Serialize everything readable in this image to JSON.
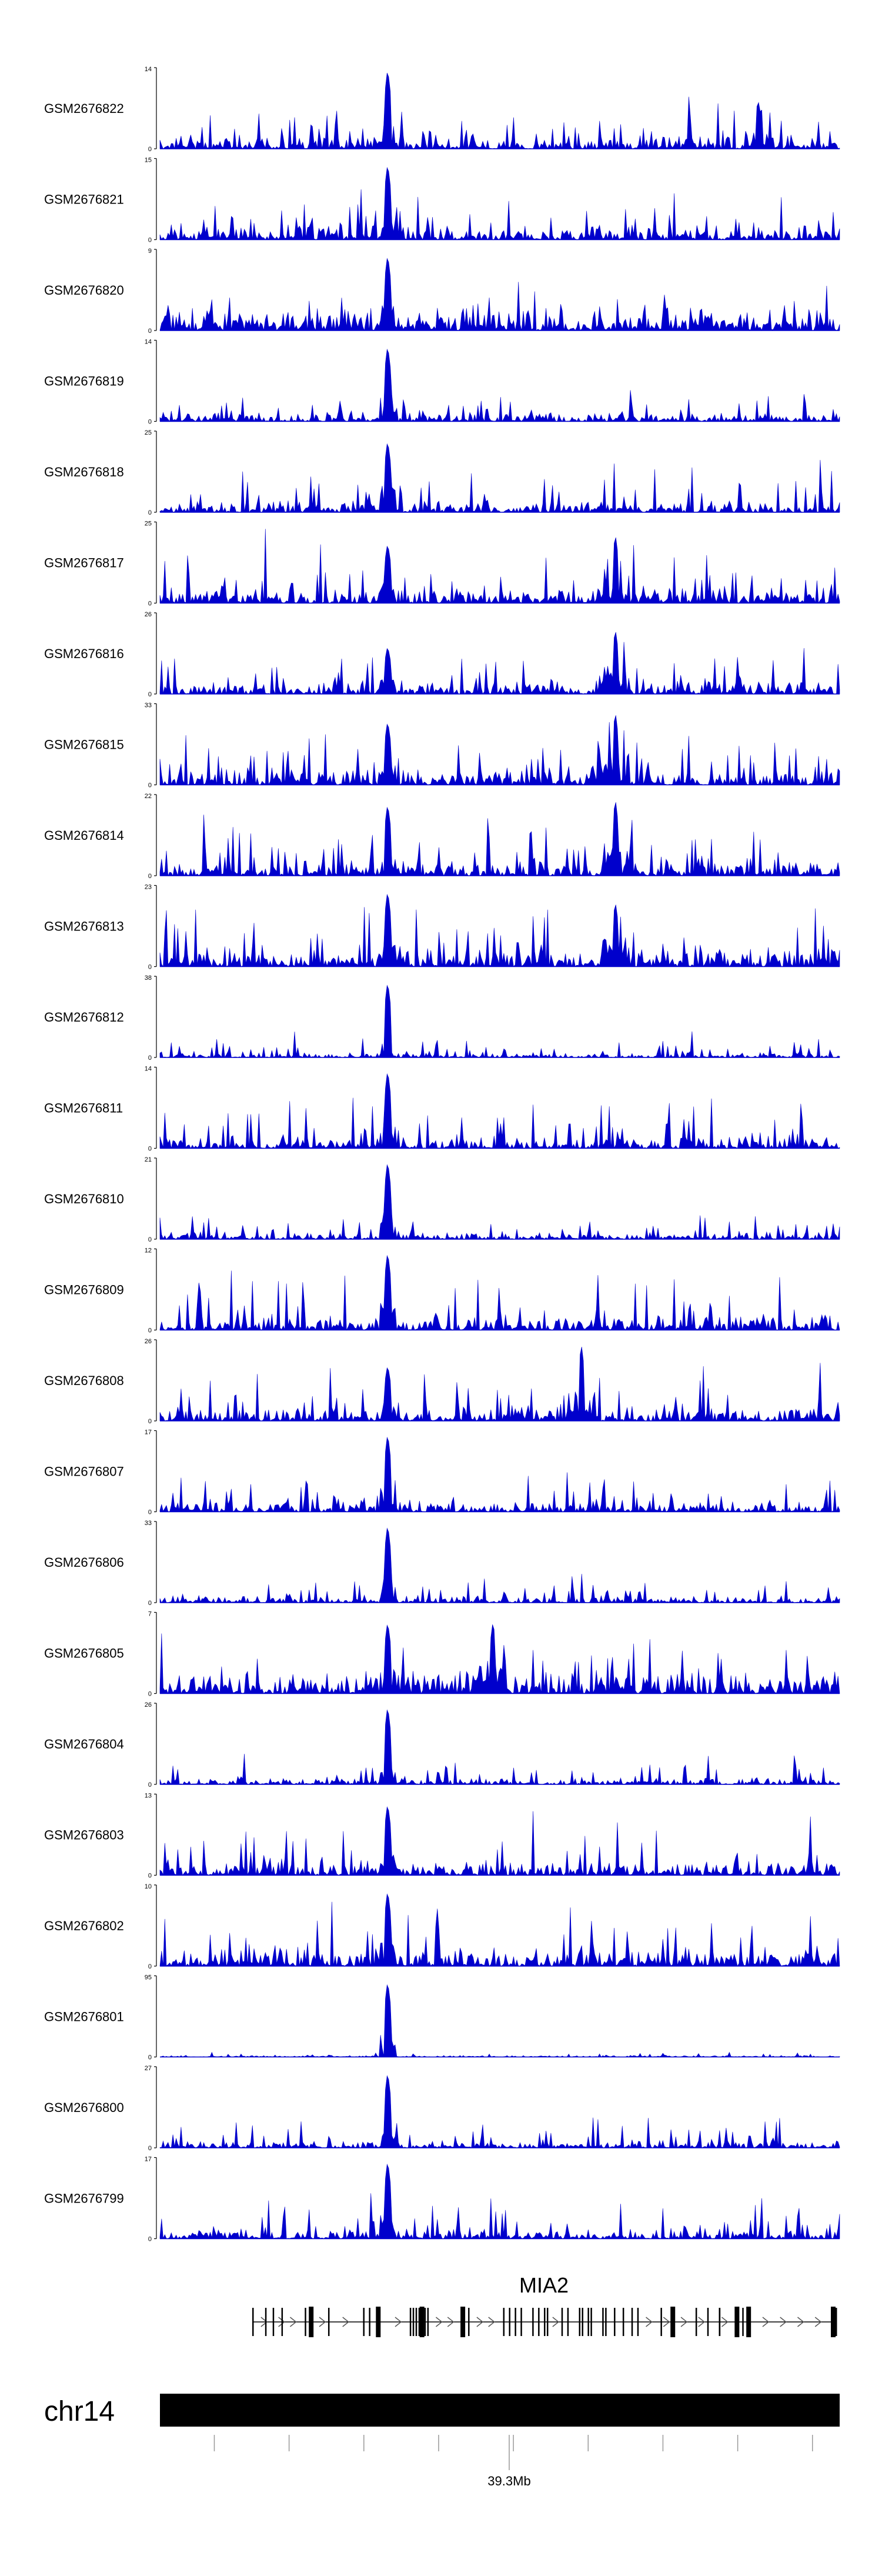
{
  "colors": {
    "signal": "#0000cc",
    "axis": "#000000",
    "ideogram": "#000000"
  },
  "chart_data": {
    "type": "area",
    "tracks": [
      {
        "name": "GSM2676822",
        "ymax": "14",
        "ymin": "0",
        "ymax_value": 14,
        "peak": 1.0,
        "secondary": [
          {
            "at": 0.88,
            "h": 0.6
          }
        ],
        "seed": 22,
        "base": 0.18,
        "noise": 0.45
      },
      {
        "name": "GSM2676821",
        "ymax": "15",
        "ymin": "0",
        "ymax_value": 15,
        "peak": 0.95,
        "secondary": [],
        "seed": 21,
        "base": 0.2,
        "noise": 0.55
      },
      {
        "name": "GSM2676820",
        "ymax": "9",
        "ymin": "0",
        "ymax_value": 9,
        "peak": 0.95,
        "secondary": [],
        "seed": 20,
        "base": 0.3,
        "noise": 0.4
      },
      {
        "name": "GSM2676819",
        "ymax": "14",
        "ymin": "0",
        "ymax_value": 14,
        "peak": 0.95,
        "secondary": [],
        "seed": 19,
        "base": 0.12,
        "noise": 0.3
      },
      {
        "name": "GSM2676818",
        "ymax": "25",
        "ymin": "0",
        "ymax_value": 25,
        "peak": 0.9,
        "secondary": [],
        "seed": 18,
        "base": 0.15,
        "noise": 0.55
      },
      {
        "name": "GSM2676817",
        "ymax": "25",
        "ymin": "0",
        "ymax_value": 25,
        "peak": 0.75,
        "secondary": [
          {
            "at": 0.67,
            "h": 0.85
          }
        ],
        "seed": 17,
        "base": 0.2,
        "noise": 0.7
      },
      {
        "name": "GSM2676816",
        "ymax": "26",
        "ymin": "0",
        "ymax_value": 26,
        "peak": 0.6,
        "secondary": [
          {
            "at": 0.67,
            "h": 0.8
          }
        ],
        "seed": 16,
        "base": 0.18,
        "noise": 0.6
      },
      {
        "name": "GSM2676815",
        "ymax": "33",
        "ymin": "0",
        "ymax_value": 33,
        "peak": 0.8,
        "secondary": [
          {
            "at": 0.67,
            "h": 0.9
          }
        ],
        "seed": 15,
        "base": 0.22,
        "noise": 0.7
      },
      {
        "name": "GSM2676814",
        "ymax": "22",
        "ymin": "0",
        "ymax_value": 22,
        "peak": 0.9,
        "secondary": [
          {
            "at": 0.67,
            "h": 0.95
          }
        ],
        "seed": 14,
        "base": 0.2,
        "noise": 0.65
      },
      {
        "name": "GSM2676813",
        "ymax": "23",
        "ymin": "0",
        "ymax_value": 23,
        "peak": 0.95,
        "secondary": [
          {
            "at": 0.67,
            "h": 0.8
          }
        ],
        "seed": 13,
        "base": 0.25,
        "noise": 0.75
      },
      {
        "name": "GSM2676812",
        "ymax": "38",
        "ymin": "0",
        "ymax_value": 38,
        "peak": 0.95,
        "secondary": [],
        "seed": 12,
        "base": 0.06,
        "noise": 0.25
      },
      {
        "name": "GSM2676811",
        "ymax": "14",
        "ymin": "0",
        "ymax_value": 14,
        "peak": 0.98,
        "secondary": [],
        "seed": 11,
        "base": 0.18,
        "noise": 0.6
      },
      {
        "name": "GSM2676810",
        "ymax": "21",
        "ymin": "0",
        "ymax_value": 21,
        "peak": 0.98,
        "secondary": [],
        "seed": 10,
        "base": 0.1,
        "noise": 0.3
      },
      {
        "name": "GSM2676809",
        "ymax": "12",
        "ymin": "0",
        "ymax_value": 12,
        "peak": 0.98,
        "secondary": [],
        "seed": 9,
        "base": 0.2,
        "noise": 0.65
      },
      {
        "name": "GSM2676808",
        "ymax": "26",
        "ymin": "0",
        "ymax_value": 26,
        "peak": 0.7,
        "secondary": [
          {
            "at": 0.62,
            "h": 0.95
          }
        ],
        "seed": 8,
        "base": 0.2,
        "noise": 0.7
      },
      {
        "name": "GSM2676807",
        "ymax": "17",
        "ymin": "0",
        "ymax_value": 17,
        "peak": 0.98,
        "secondary": [],
        "seed": 7,
        "base": 0.15,
        "noise": 0.45
      },
      {
        "name": "GSM2676806",
        "ymax": "33",
        "ymin": "0",
        "ymax_value": 33,
        "peak": 0.98,
        "secondary": [],
        "seed": 6,
        "base": 0.08,
        "noise": 0.35
      },
      {
        "name": "GSM2676805",
        "ymax": "7",
        "ymin": "0",
        "ymax_value": 7,
        "peak": 0.9,
        "secondary": [
          {
            "at": 0.49,
            "h": 0.9
          }
        ],
        "seed": 5,
        "base": 0.3,
        "noise": 0.75
      },
      {
        "name": "GSM2676804",
        "ymax": "26",
        "ymin": "0",
        "ymax_value": 26,
        "peak": 0.98,
        "secondary": [],
        "seed": 4,
        "base": 0.08,
        "noise": 0.3
      },
      {
        "name": "GSM2676803",
        "ymax": "13",
        "ymin": "0",
        "ymax_value": 13,
        "peak": 0.9,
        "secondary": [],
        "seed": 3,
        "base": 0.2,
        "noise": 0.7
      },
      {
        "name": "GSM2676802",
        "ymax": "10",
        "ymin": "0",
        "ymax_value": 10,
        "peak": 0.95,
        "secondary": [],
        "seed": 2,
        "base": 0.25,
        "noise": 0.8
      },
      {
        "name": "GSM2676801",
        "ymax": "95",
        "ymin": "0",
        "ymax_value": 95,
        "peak": 0.95,
        "secondary": [],
        "seed": 1,
        "base": 0.02,
        "noise": 0.06
      },
      {
        "name": "GSM2676800",
        "ymax": "27",
        "ymin": "0",
        "ymax_value": 27,
        "peak": 0.95,
        "secondary": [],
        "seed": 100,
        "base": 0.1,
        "noise": 0.4
      },
      {
        "name": "GSM2676799",
        "ymax": "17",
        "ymin": "0",
        "ymax_value": 17,
        "peak": 0.98,
        "secondary": [],
        "seed": 99,
        "base": 0.12,
        "noise": 0.5
      }
    ],
    "gene": {
      "name": "MIA2",
      "exons": [
        0.0,
        0.022,
        0.035,
        0.05,
        0.09,
        0.1,
        0.13,
        0.19,
        0.2,
        0.215,
        0.27,
        0.275,
        0.28,
        0.285,
        0.29,
        0.295,
        0.3,
        0.36,
        0.37,
        0.43,
        0.44,
        0.45,
        0.46,
        0.48,
        0.49,
        0.5,
        0.505,
        0.53,
        0.54,
        0.56,
        0.565,
        0.575,
        0.58,
        0.6,
        0.605,
        0.62,
        0.635,
        0.65,
        0.66,
        0.7,
        0.72,
        0.76,
        0.78,
        0.8,
        0.8,
        0.83,
        0.84,
        0.85,
        1.0
      ],
      "thick_exons": [
        0.1,
        0.215,
        0.29,
        0.36,
        0.72,
        0.83,
        0.85,
        0.995
      ],
      "arrows": [
        0.02,
        0.05,
        0.07,
        0.12,
        0.16,
        0.25,
        0.32,
        0.34,
        0.39,
        0.41,
        0.52,
        0.68,
        0.71,
        0.74,
        0.77,
        0.81,
        0.88,
        0.91,
        0.94,
        0.97
      ]
    },
    "chromosome": "chr14",
    "position_label": "39.3Mb",
    "ticks": [
      0.08,
      0.19,
      0.3,
      0.41,
      0.52,
      0.63,
      0.74,
      0.85,
      0.96
    ]
  }
}
